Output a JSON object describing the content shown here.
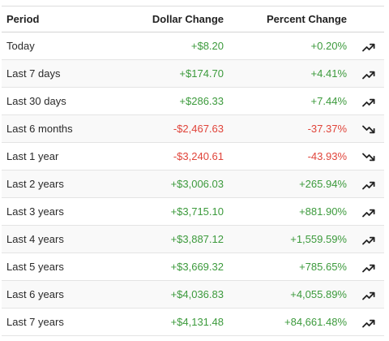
{
  "headers": {
    "period": "Period",
    "dollar": "Dollar Change",
    "percent": "Percent Change"
  },
  "colors": {
    "positive": "#3c9a3c",
    "negative": "#e0443a"
  },
  "rows": [
    {
      "period": "Today",
      "dollar": "+$8.20",
      "percent": "+0.20%",
      "direction": "up",
      "trend_icon": "trending-up-icon"
    },
    {
      "period": "Last 7 days",
      "dollar": "+$174.70",
      "percent": "+4.41%",
      "direction": "up",
      "trend_icon": "trending-up-icon"
    },
    {
      "period": "Last 30 days",
      "dollar": "+$286.33",
      "percent": "+7.44%",
      "direction": "up",
      "trend_icon": "trending-up-icon"
    },
    {
      "period": "Last 6 months",
      "dollar": "-$2,467.63",
      "percent": "-37.37%",
      "direction": "down",
      "trend_icon": "trending-down-icon"
    },
    {
      "period": "Last 1 year",
      "dollar": "-$3,240.61",
      "percent": "-43.93%",
      "direction": "down",
      "trend_icon": "trending-down-icon"
    },
    {
      "period": "Last 2 years",
      "dollar": "+$3,006.03",
      "percent": "+265.94%",
      "direction": "up",
      "trend_icon": "trending-up-icon"
    },
    {
      "period": "Last 3 years",
      "dollar": "+$3,715.10",
      "percent": "+881.90%",
      "direction": "up",
      "trend_icon": "trending-up-icon"
    },
    {
      "period": "Last 4 years",
      "dollar": "+$3,887.12",
      "percent": "+1,559.59%",
      "direction": "up",
      "trend_icon": "trending-up-icon"
    },
    {
      "period": "Last 5 years",
      "dollar": "+$3,669.32",
      "percent": "+785.65%",
      "direction": "up",
      "trend_icon": "trending-up-icon"
    },
    {
      "period": "Last 6 years",
      "dollar": "+$4,036.83",
      "percent": "+4,055.89%",
      "direction": "up",
      "trend_icon": "trending-up-icon"
    },
    {
      "period": "Last 7 years",
      "dollar": "+$4,131.48",
      "percent": "+84,661.48%",
      "direction": "up",
      "trend_icon": "trending-up-icon"
    }
  ]
}
